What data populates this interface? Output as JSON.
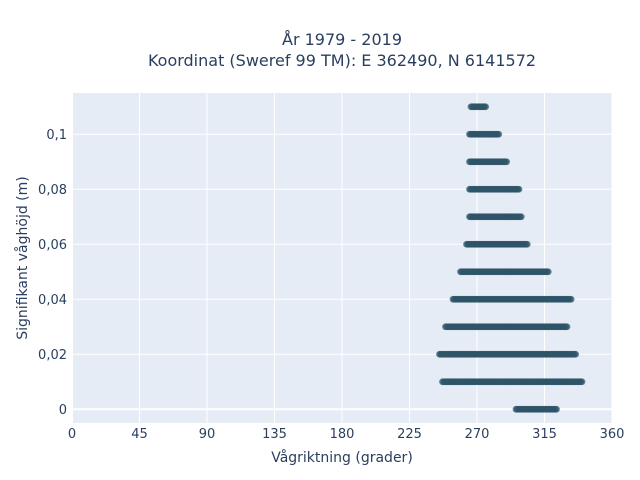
{
  "chart_data": {
    "type": "scatter",
    "title_line1": "År 1979 - 2019",
    "title_line2": "Koordinat (Sweref 99 TM): E 362490, N 6141572",
    "xlabel": "Vågriktning (grader)",
    "ylabel": "Signifikant våghöjd (m)",
    "xlim": [
      0,
      360
    ],
    "ylim": [
      -0.005,
      0.115
    ],
    "x_ticks": [
      0,
      45,
      90,
      135,
      180,
      225,
      270,
      315,
      360
    ],
    "x_tick_labels": [
      "0",
      "45",
      "90",
      "135",
      "180",
      "225",
      "270",
      "315",
      "360"
    ],
    "y_ticks": [
      0,
      0.02,
      0.04,
      0.06,
      0.08,
      0.1
    ],
    "y_tick_labels": [
      "0",
      "0,02",
      "0,04",
      "0,06",
      "0,08",
      "0,1"
    ],
    "grid": true,
    "marker_color": "#2f5468",
    "background_color": "#e5ecf6",
    "bands": [
      {
        "y": 0.0,
        "x_min": 296,
        "x_max": 323
      },
      {
        "y": 0.01,
        "x_min": 247,
        "x_max": 340
      },
      {
        "y": 0.02,
        "x_min": 245,
        "x_max": 336
      },
      {
        "y": 0.03,
        "x_min": 249,
        "x_max": 330
      },
      {
        "y": 0.04,
        "x_min": 254,
        "x_max": 333
      },
      {
        "y": 0.05,
        "x_min": 259,
        "x_max": 318
      },
      {
        "y": 0.06,
        "x_min": 263,
        "x_max": 304
      },
      {
        "y": 0.07,
        "x_min": 265,
        "x_max": 300
      },
      {
        "y": 0.08,
        "x_min": 265,
        "x_max": 298
      },
      {
        "y": 0.09,
        "x_min": 265,
        "x_max": 290
      },
      {
        "y": 0.1,
        "x_min": 265,
        "x_max": 285
      },
      {
        "y": 0.11,
        "x_min": 266,
        "x_max": 276
      }
    ]
  }
}
